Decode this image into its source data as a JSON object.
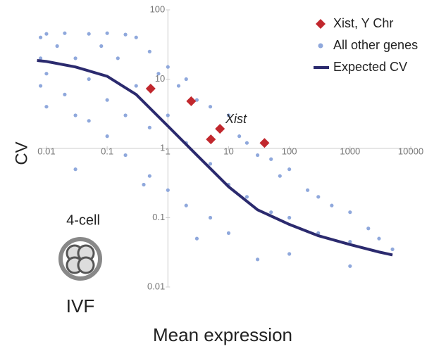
{
  "chart_data": {
    "type": "scatter",
    "xlabel": "Mean expression",
    "ylabel": "CV",
    "xscale": "log",
    "yscale": "log",
    "xlim": [
      0.005,
      10000
    ],
    "ylim": [
      0.01,
      100
    ],
    "xticks": [
      0.01,
      0.1,
      1,
      10,
      100,
      1000,
      10000
    ],
    "yticks": [
      0.01,
      0.1,
      1,
      10,
      100
    ],
    "legend": "upper right",
    "series": [
      {
        "name": "Xist, Y Chr",
        "kind": "diamond",
        "color": "#c1272d",
        "x": [
          0.52,
          2.42,
          7.2,
          5.1,
          39
        ],
        "y": [
          7.3,
          4.8,
          1.92,
          1.35,
          1.2
        ]
      },
      {
        "name": "All other genes",
        "kind": "dot",
        "color": "#8fa8dc",
        "x": [
          0.008,
          0.008,
          0.008,
          0.01,
          0.01,
          0.01,
          0.015,
          0.02,
          0.02,
          0.03,
          0.03,
          0.05,
          0.05,
          0.05,
          0.08,
          0.1,
          0.1,
          0.1,
          0.15,
          0.2,
          0.2,
          0.2,
          0.3,
          0.3,
          0.5,
          0.5,
          0.5,
          0.7,
          1,
          1,
          1,
          1.5,
          2,
          2,
          2,
          3,
          5,
          5,
          5,
          7,
          10,
          10,
          10,
          15,
          20,
          20,
          30,
          50,
          50,
          70,
          100,
          100,
          100,
          200,
          300,
          300,
          500,
          1000,
          1000,
          1000,
          2000,
          3000,
          5000,
          0.4,
          3,
          30,
          0.03
        ],
        "y": [
          40,
          20,
          8,
          45,
          12,
          4,
          30,
          46,
          6,
          20,
          3,
          45,
          10,
          2.5,
          30,
          46,
          5,
          1.5,
          20,
          44,
          3,
          0.8,
          40,
          8,
          25,
          2,
          0.4,
          12,
          15,
          3,
          0.25,
          8,
          10,
          1.2,
          0.15,
          5,
          4,
          0.6,
          0.1,
          2,
          3,
          0.3,
          0.06,
          1.5,
          1.2,
          0.2,
          0.8,
          0.7,
          0.12,
          0.4,
          0.5,
          0.1,
          0.03,
          0.25,
          0.2,
          0.06,
          0.15,
          0.12,
          0.045,
          0.02,
          0.07,
          0.05,
          0.035,
          0.3,
          0.05,
          0.025,
          0.5
        ]
      },
      {
        "name": "Expected CV",
        "kind": "line",
        "color": "#2b2a6e",
        "x": [
          0.007,
          0.01,
          0.03,
          0.1,
          0.3,
          1,
          3,
          10,
          30,
          100,
          300,
          1000,
          3000,
          5000
        ],
        "y": [
          18.6,
          18,
          15,
          11,
          6,
          2.1,
          0.8,
          0.28,
          0.13,
          0.08,
          0.055,
          0.041,
          0.032,
          0.029
        ]
      }
    ],
    "annotations": [
      "Xist",
      "4-cell",
      "IVF"
    ]
  }
}
